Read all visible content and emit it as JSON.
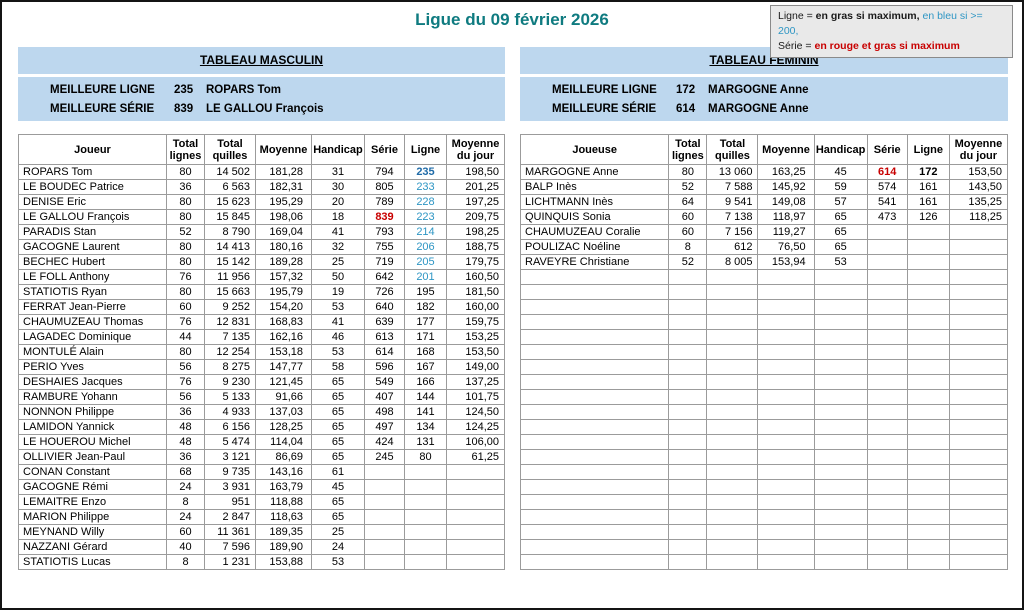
{
  "page": {
    "title": "Ligue du 09 février 2026"
  },
  "colors": {
    "accent_teal": "#0F7B80",
    "band_blue": "#BDD7EE",
    "legend_bg": "#E9E9E9",
    "line_blue": "#2E96C4",
    "line_max_blue": "#1F6BA8",
    "series_red": "#C80000"
  },
  "legend": {
    "l1a": "Ligne = ",
    "l1b": "en gras si maximum,",
    "l1c": " en bleu si  >= 200,",
    "l2a": "Série = ",
    "l2b": "en rouge et gras si maximum"
  },
  "men": {
    "section_title": "TABLEAU MASCULIN",
    "best_line": {
      "label": "MEILLEURE LIGNE",
      "value": "235",
      "player": "ROPARS Tom"
    },
    "best_series": {
      "label": "MEILLEURE SÉRIE",
      "value": "839",
      "player": "LE GALLOU François"
    },
    "columns": [
      "Joueur",
      "Total lignes",
      "Total quilles",
      "Moyenne",
      "Handicap",
      "Série",
      "Ligne",
      "Moyenne du jour"
    ],
    "rows": [
      [
        "ROPARS Tom",
        "80",
        "14 502",
        "181,28",
        "31",
        "794",
        "235",
        "198,50"
      ],
      [
        "LE BOUDEC Patrice",
        "36",
        "6 563",
        "182,31",
        "30",
        "805",
        "233",
        "201,25"
      ],
      [
        "DENISE Eric",
        "80",
        "15 623",
        "195,29",
        "20",
        "789",
        "228",
        "197,25"
      ],
      [
        "LE GALLOU François",
        "80",
        "15 845",
        "198,06",
        "18",
        "839",
        "223",
        "209,75"
      ],
      [
        "PARADIS Stan",
        "52",
        "8 790",
        "169,04",
        "41",
        "793",
        "214",
        "198,25"
      ],
      [
        "GACOGNE Laurent",
        "80",
        "14 413",
        "180,16",
        "32",
        "755",
        "206",
        "188,75"
      ],
      [
        "BECHEC Hubert",
        "80",
        "15 142",
        "189,28",
        "25",
        "719",
        "205",
        "179,75"
      ],
      [
        "LE FOLL Anthony",
        "76",
        "11 956",
        "157,32",
        "50",
        "642",
        "201",
        "160,50"
      ],
      [
        "STATIOTIS Ryan",
        "80",
        "15 663",
        "195,79",
        "19",
        "726",
        "195",
        "181,50"
      ],
      [
        "FERRAT Jean-Pierre",
        "60",
        "9 252",
        "154,20",
        "53",
        "640",
        "182",
        "160,00"
      ],
      [
        "CHAUMUZEAU Thomas",
        "76",
        "12 831",
        "168,83",
        "41",
        "639",
        "177",
        "159,75"
      ],
      [
        "LAGADEC Dominique",
        "44",
        "7 135",
        "162,16",
        "46",
        "613",
        "171",
        "153,25"
      ],
      [
        "MONTULÉ Alain",
        "80",
        "12 254",
        "153,18",
        "53",
        "614",
        "168",
        "153,50"
      ],
      [
        "PERIO Yves",
        "56",
        "8 275",
        "147,77",
        "58",
        "596",
        "167",
        "149,00"
      ],
      [
        "DESHAIES Jacques",
        "76",
        "9 230",
        "121,45",
        "65",
        "549",
        "166",
        "137,25"
      ],
      [
        "RAMBURE Yohann",
        "56",
        "5 133",
        "91,66",
        "65",
        "407",
        "144",
        "101,75"
      ],
      [
        "NONNON Philippe",
        "36",
        "4 933",
        "137,03",
        "65",
        "498",
        "141",
        "124,50"
      ],
      [
        "LAMIDON Yannick",
        "48",
        "6 156",
        "128,25",
        "65",
        "497",
        "134",
        "124,25"
      ],
      [
        "LE HOUEROU Michel",
        "48",
        "5 474",
        "114,04",
        "65",
        "424",
        "131",
        "106,00"
      ],
      [
        "OLLIVIER Jean-Paul",
        "36",
        "3 121",
        "86,69",
        "65",
        "245",
        "80",
        "61,25"
      ],
      [
        "CONAN Constant",
        "68",
        "9 735",
        "143,16",
        "61",
        "",
        "",
        ""
      ],
      [
        "GACOGNE Rémi",
        "24",
        "3 931",
        "163,79",
        "45",
        "",
        "",
        ""
      ],
      [
        "LEMAITRE Enzo",
        "8",
        "951",
        "118,88",
        "65",
        "",
        "",
        ""
      ],
      [
        "MARION Philippe",
        "24",
        "2 847",
        "118,63",
        "65",
        "",
        "",
        ""
      ],
      [
        "MEYNAND Willy",
        "60",
        "11 361",
        "189,35",
        "25",
        "",
        "",
        ""
      ],
      [
        "NAZZANI Gérard",
        "40",
        "7 596",
        "189,90",
        "24",
        "",
        "",
        ""
      ],
      [
        "STATIOTIS Lucas",
        "8",
        "1 231",
        "153,88",
        "53",
        "",
        "",
        ""
      ]
    ],
    "empty_rows": 0
  },
  "women": {
    "section_title": "TABLEAU FEMININ",
    "best_line": {
      "label": "MEILLEURE LIGNE",
      "value": "172",
      "player": "MARGOGNE Anne"
    },
    "best_series": {
      "label": "MEILLEURE SÉRIE",
      "value": "614",
      "player": "MARGOGNE Anne"
    },
    "columns": [
      "Joueuse",
      "Total lignes",
      "Total quilles",
      "Moyenne",
      "Handicap",
      "Série",
      "Ligne",
      "Moyenne du jour"
    ],
    "rows": [
      [
        "MARGOGNE Anne",
        "80",
        "13 060",
        "163,25",
        "45",
        "614",
        "172",
        "153,50"
      ],
      [
        "BALP Inès",
        "52",
        "7 588",
        "145,92",
        "59",
        "574",
        "161",
        "143,50"
      ],
      [
        "LICHTMANN Inès",
        "64",
        "9 541",
        "149,08",
        "57",
        "541",
        "161",
        "135,25"
      ],
      [
        "QUINQUIS Sonia",
        "60",
        "7 138",
        "118,97",
        "65",
        "473",
        "126",
        "118,25"
      ],
      [
        "CHAUMUZEAU Coralie",
        "60",
        "7 156",
        "119,27",
        "65",
        "",
        "",
        ""
      ],
      [
        "POULIZAC Noéline",
        "8",
        "612",
        "76,50",
        "65",
        "",
        "",
        ""
      ],
      [
        "RAVEYRE Christiane",
        "52",
        "8 005",
        "153,94",
        "53",
        "",
        "",
        ""
      ]
    ],
    "empty_rows": 20
  }
}
